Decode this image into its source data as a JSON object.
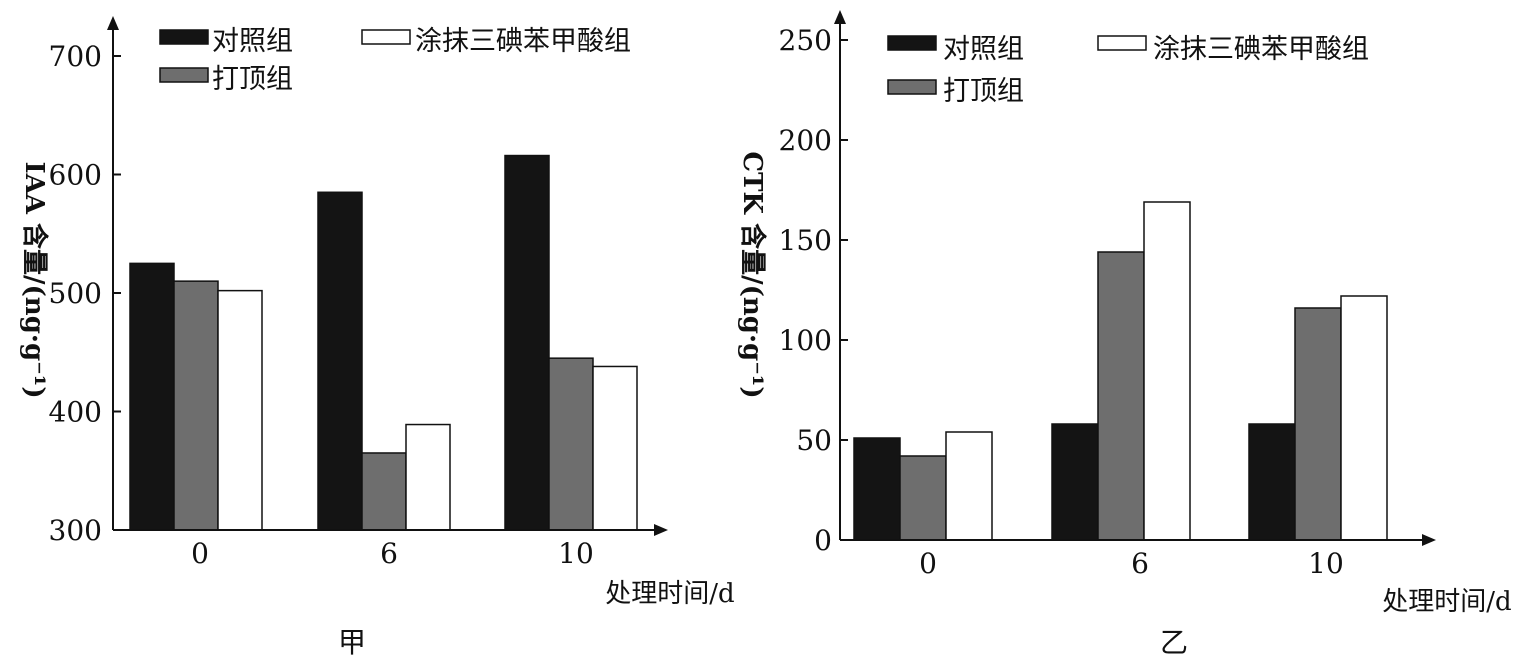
{
  "colors": {
    "control": "#141414",
    "topping": "#6e6e6e",
    "tiba": "#ffffff",
    "axis": "#111111"
  },
  "chart_data": [
    {
      "type": "bar",
      "caption": "甲",
      "ylabel": "IAA 含量/(ng·g⁻¹)",
      "xlabel": "处理时间/d",
      "categories": [
        "0",
        "6",
        "10"
      ],
      "ylim": [
        300,
        700
      ],
      "yticks": [
        300,
        400,
        500,
        600,
        700
      ],
      "legend": [
        "对照组",
        "打顶组",
        "涂抹三碘苯甲酸组"
      ],
      "series": [
        {
          "name": "对照组",
          "values": [
            525,
            585,
            616
          ]
        },
        {
          "name": "打顶组",
          "values": [
            510,
            365,
            445
          ]
        },
        {
          "name": "涂抹三碘苯甲酸组",
          "values": [
            502,
            389,
            438
          ]
        }
      ]
    },
    {
      "type": "bar",
      "caption": "乙",
      "ylabel": "CTK 含量/(ng·g⁻¹)",
      "xlabel": "处理时间/d",
      "categories": [
        "0",
        "6",
        "10"
      ],
      "ylim": [
        0,
        250
      ],
      "yticks": [
        0,
        50,
        100,
        150,
        200,
        250
      ],
      "legend": [
        "对照组",
        "打顶组",
        "涂抹三碘苯甲酸组"
      ],
      "series": [
        {
          "name": "对照组",
          "values": [
            51,
            58,
            58
          ]
        },
        {
          "name": "打顶组",
          "values": [
            42,
            144,
            116
          ]
        },
        {
          "name": "涂抹三碘苯甲酸组",
          "values": [
            54,
            169,
            122
          ]
        }
      ]
    }
  ]
}
